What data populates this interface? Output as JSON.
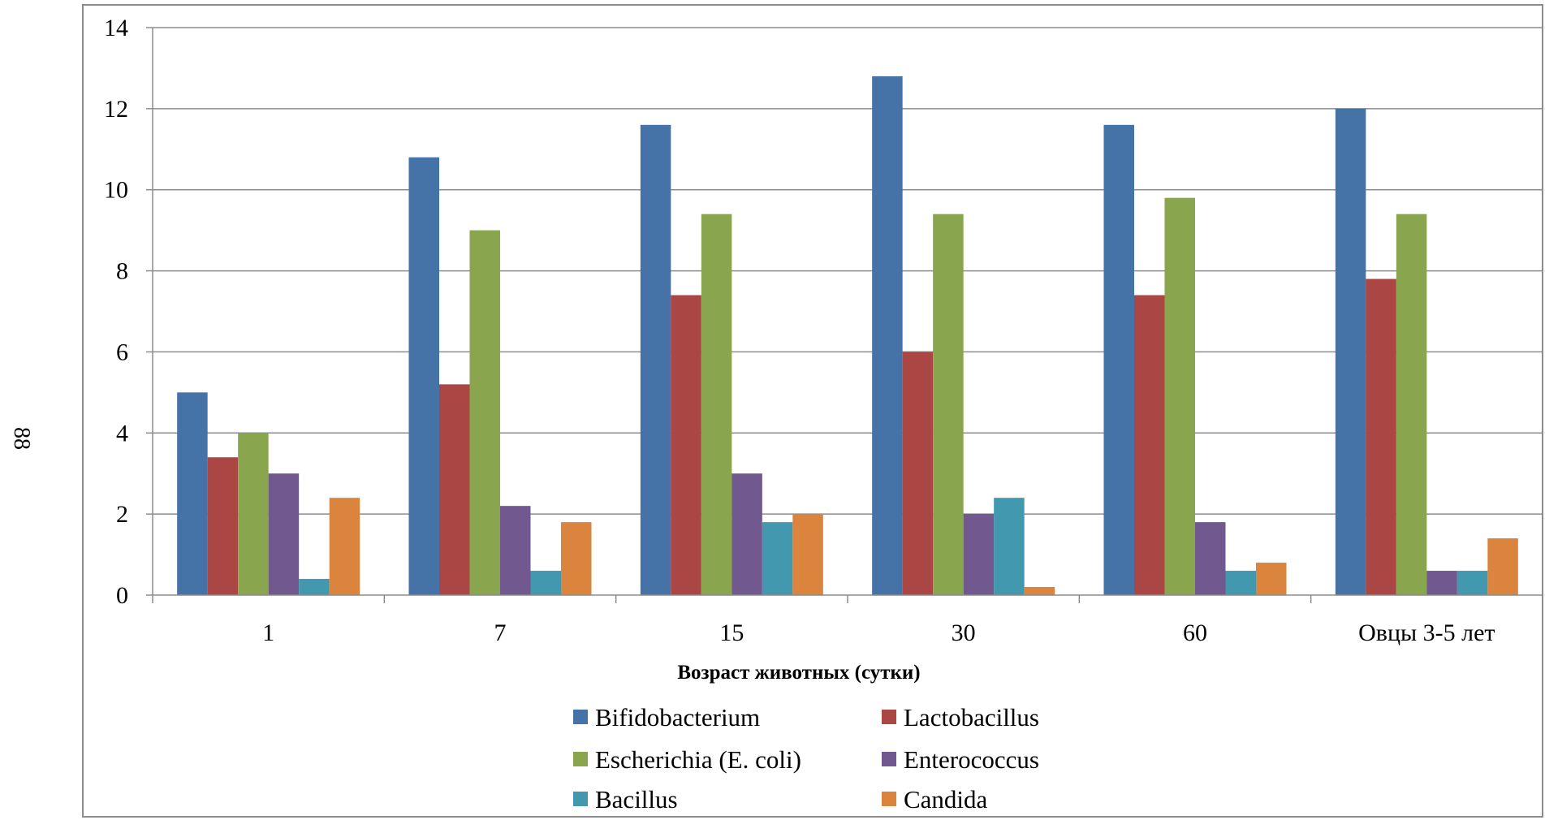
{
  "page_number": "88",
  "chart_data": {
    "type": "bar",
    "title": "",
    "xlabel": "Возраст животных (сутки)",
    "ylabel": "",
    "ylim": [
      0,
      14
    ],
    "yticks": [
      "0",
      "2",
      "4",
      "6",
      "8",
      "10",
      "12",
      "14"
    ],
    "grid": true,
    "legend_position": "bottom",
    "categories": [
      "1",
      "7",
      "15",
      "30",
      "60",
      "Овцы 3-5 лет"
    ],
    "series": [
      {
        "name": "Bifidobacterium",
        "color": "#4572A7",
        "values": [
          5,
          10.8,
          11.6,
          12.8,
          11.6,
          12
        ]
      },
      {
        "name": "Lactobacillus",
        "color": "#AA4643",
        "values": [
          3.4,
          5.2,
          7.4,
          6,
          7.4,
          7.8
        ]
      },
      {
        "name": "Escherichia (E. coli)",
        "color": "#89A54E",
        "values": [
          4,
          9,
          9.4,
          9.4,
          9.8,
          9.4
        ]
      },
      {
        "name": "Enterococcus",
        "color": "#71588F",
        "values": [
          3,
          2.2,
          3,
          2,
          1.8,
          0.6
        ]
      },
      {
        "name": "Bacillus",
        "color": "#4198AF",
        "values": [
          0.4,
          0.6,
          1.8,
          2.4,
          0.6,
          0.6
        ]
      },
      {
        "name": "Candida",
        "color": "#DB843D",
        "values": [
          2.4,
          1.8,
          2,
          0.2,
          0.8,
          1.4
        ]
      }
    ]
  }
}
